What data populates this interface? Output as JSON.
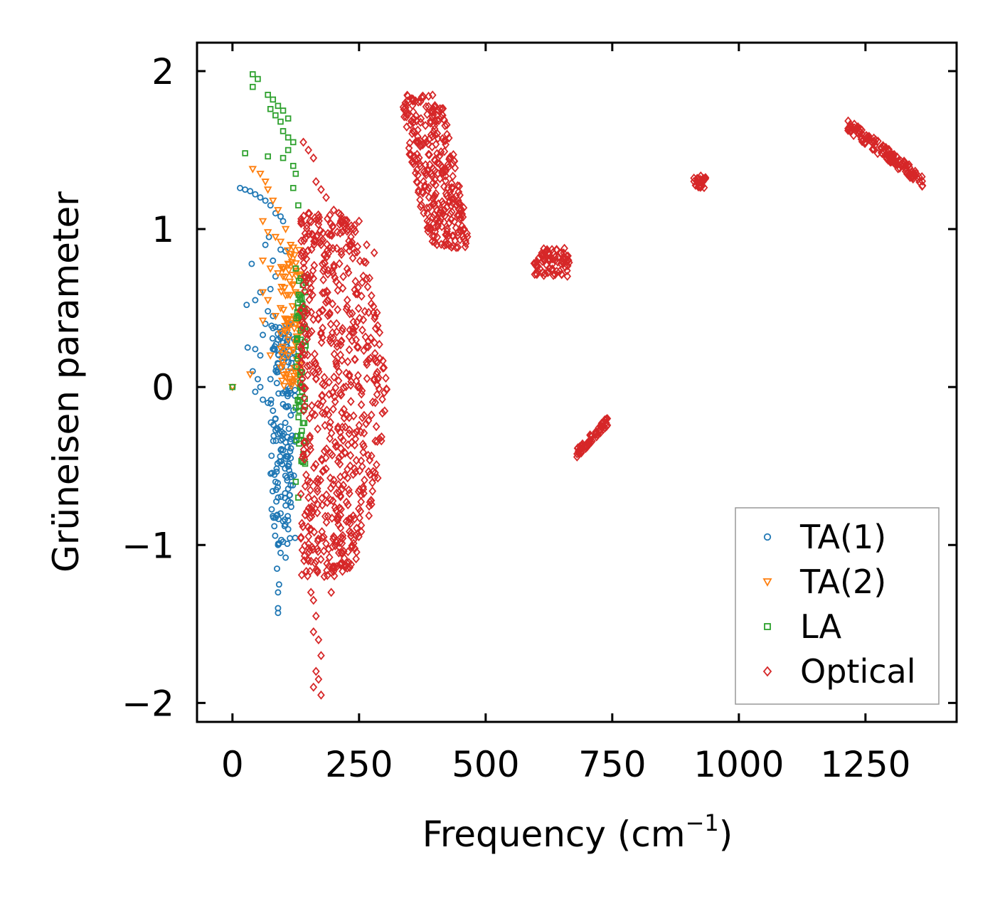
{
  "chart_data": {
    "type": "scatter",
    "title": "",
    "xlabel": "Frequency (cm",
    "xlabel_exp": "−1",
    "xlabel_close": ")",
    "ylabel": "Grüneisen parameter",
    "xlim": [
      -70,
      1430
    ],
    "ylim": [
      -2.12,
      2.18
    ],
    "xticks": [
      0,
      250,
      500,
      750,
      1000,
      1250
    ],
    "xtick_labels": [
      "0",
      "250",
      "500",
      "750",
      "1000",
      "1250"
    ],
    "yticks": [
      -2,
      -1,
      0,
      1,
      2
    ],
    "ytick_labels": [
      "−2",
      "−1",
      "0",
      "1",
      "2"
    ],
    "legend_position": "lower-right",
    "series": [
      {
        "name": "TA(1)",
        "marker": "circle",
        "color": "#1f77b4",
        "points": [
          [
            0,
            0
          ],
          [
            15,
            1.26
          ],
          [
            25,
            1.25
          ],
          [
            35,
            1.24
          ],
          [
            45,
            1.22
          ],
          [
            55,
            1.2
          ],
          [
            65,
            1.18
          ],
          [
            75,
            1.15
          ],
          [
            85,
            1.1
          ],
          [
            95,
            1.08
          ],
          [
            100,
            1.05
          ],
          [
            28,
            0.52
          ],
          [
            38,
            0.78
          ],
          [
            45,
            0.55
          ],
          [
            55,
            0.6
          ],
          [
            65,
            0.9
          ],
          [
            72,
            0.95
          ],
          [
            80,
            0.8
          ],
          [
            85,
            0.7
          ],
          [
            95,
            0.87
          ],
          [
            105,
            0.86
          ],
          [
            30,
            0.25
          ],
          [
            40,
            0.1
          ],
          [
            45,
            0.24
          ],
          [
            50,
            0.05
          ],
          [
            55,
            0.2
          ],
          [
            60,
            0.33
          ],
          [
            65,
            0.4
          ],
          [
            70,
            0.48
          ],
          [
            75,
            0.62
          ],
          [
            80,
            0.45
          ],
          [
            85,
            0.38
          ],
          [
            90,
            0.3
          ],
          [
            95,
            0.35
          ],
          [
            100,
            0.28
          ],
          [
            110,
            0.32
          ],
          [
            45,
            -0.03
          ],
          [
            55,
            0.0
          ],
          [
            60,
            -0.08
          ],
          [
            70,
            -0.1
          ],
          [
            75,
            0.05
          ],
          [
            80,
            -0.15
          ],
          [
            85,
            -0.2
          ],
          [
            90,
            -0.3
          ],
          [
            95,
            -0.25
          ],
          [
            100,
            -0.4
          ],
          [
            105,
            -0.35
          ],
          [
            110,
            -0.5
          ],
          [
            115,
            -0.45
          ],
          [
            85,
            -0.6
          ],
          [
            90,
            -0.7
          ],
          [
            95,
            -0.8
          ],
          [
            100,
            -0.85
          ],
          [
            105,
            -0.75
          ],
          [
            110,
            -0.9
          ],
          [
            90,
            -1.0
          ],
          [
            95,
            -1.05
          ],
          [
            100,
            -0.98
          ],
          [
            105,
            -1.08
          ],
          [
            88,
            -1.15
          ],
          [
            92,
            -1.25
          ],
          [
            90,
            -1.3
          ],
          [
            90,
            -1.4
          ],
          [
            90,
            -1.43
          ]
        ],
        "dense_regions": [
          {
            "x": [
              75,
              125
            ],
            "y": [
              -1.0,
              0.4
            ],
            "count": 160
          }
        ]
      },
      {
        "name": "TA(2)",
        "marker": "triangle-down",
        "color": "#ff7f0e",
        "points": [
          [
            0,
            0
          ],
          [
            40,
            1.38
          ],
          [
            55,
            1.35
          ],
          [
            65,
            1.3
          ],
          [
            70,
            1.25
          ],
          [
            80,
            1.18
          ],
          [
            90,
            1.12
          ],
          [
            60,
            1.05
          ],
          [
            70,
            0.98
          ],
          [
            85,
            0.95
          ],
          [
            95,
            0.92
          ],
          [
            105,
            1.0
          ],
          [
            115,
            0.9
          ],
          [
            60,
            0.8
          ],
          [
            75,
            0.75
          ],
          [
            90,
            0.72
          ],
          [
            100,
            0.7
          ],
          [
            110,
            0.78
          ],
          [
            120,
            0.65
          ],
          [
            60,
            0.6
          ],
          [
            70,
            0.55
          ],
          [
            85,
            0.45
          ],
          [
            95,
            0.5
          ],
          [
            105,
            0.58
          ],
          [
            60,
            0.42
          ],
          [
            35,
            0.08
          ],
          [
            75,
            0.2
          ],
          [
            110,
            0.3
          ],
          [
            125,
            0.4
          ]
        ],
        "dense_regions": [
          {
            "x": [
              95,
              135
            ],
            "y": [
              0.0,
              0.9
            ],
            "count": 90
          }
        ]
      },
      {
        "name": "LA",
        "marker": "square",
        "color": "#2ca02c",
        "points": [
          [
            0,
            0
          ],
          [
            40,
            1.98
          ],
          [
            50,
            1.95
          ],
          [
            40,
            1.9
          ],
          [
            70,
            1.85
          ],
          [
            80,
            1.82
          ],
          [
            90,
            1.78
          ],
          [
            100,
            1.75
          ],
          [
            110,
            1.7
          ],
          [
            75,
            1.76
          ],
          [
            85,
            1.72
          ],
          [
            95,
            1.68
          ],
          [
            100,
            1.62
          ],
          [
            110,
            1.58
          ],
          [
            120,
            1.55
          ],
          [
            110,
            1.5
          ],
          [
            100,
            1.45
          ],
          [
            120,
            1.4
          ],
          [
            125,
            1.35
          ],
          [
            25,
            1.48
          ],
          [
            70,
            1.46
          ],
          [
            120,
            1.26
          ],
          [
            130,
            1.15
          ],
          [
            125,
            0.75
          ],
          [
            130,
            0.5
          ],
          [
            135,
            0.3
          ],
          [
            125,
            -0.6
          ],
          [
            130,
            -0.7
          ]
        ],
        "dense_regions": [
          {
            "x": [
              125,
              145
            ],
            "y": [
              -0.5,
              0.7
            ],
            "count": 70
          }
        ]
      },
      {
        "name": "Optical",
        "marker": "diamond",
        "color": "#d62728",
        "points": [
          [
            140,
            1.55
          ],
          [
            150,
            1.5
          ],
          [
            160,
            1.45
          ],
          [
            165,
            1.3
          ],
          [
            175,
            1.25
          ],
          [
            185,
            1.2
          ],
          [
            200,
            1.12
          ],
          [
            210,
            1.1
          ],
          [
            225,
            1.05
          ],
          [
            240,
            1.0
          ],
          [
            250,
            1.05
          ],
          [
            265,
            0.9
          ],
          [
            280,
            0.85
          ],
          [
            150,
            -0.7
          ],
          [
            155,
            -0.9
          ],
          [
            150,
            -1.1
          ],
          [
            155,
            -1.3
          ],
          [
            160,
            -1.35
          ],
          [
            165,
            -1.45
          ],
          [
            160,
            -1.55
          ],
          [
            170,
            -1.6
          ],
          [
            175,
            -1.7
          ],
          [
            165,
            -1.8
          ],
          [
            170,
            -1.85
          ],
          [
            160,
            -1.9
          ],
          [
            175,
            -1.95
          ],
          [
            195,
            -1.3
          ],
          [
            210,
            -1.05
          ],
          [
            225,
            -0.85
          ]
        ],
        "dense_regions": [
          {
            "x": [
              135,
              300
            ],
            "y": [
              -1.2,
              1.1
            ],
            "count": 650,
            "shape": "band"
          },
          {
            "x": [
              330,
              470
            ],
            "y": [
              0.88,
              1.85
            ],
            "count": 300,
            "shape": "band2"
          },
          {
            "x": [
              595,
              665
            ],
            "y": [
              0.7,
              0.88
            ],
            "count": 80
          },
          {
            "x": [
              680,
              745
            ],
            "y": [
              -0.42,
              -0.2
            ],
            "count": 60,
            "shape": "slope"
          },
          {
            "x": [
              910,
              935
            ],
            "y": [
              1.26,
              1.34
            ],
            "count": 25
          },
          {
            "x": [
              1215,
              1365
            ],
            "y": [
              1.3,
              1.66
            ],
            "count": 140,
            "shape": "slope"
          }
        ]
      }
    ]
  }
}
